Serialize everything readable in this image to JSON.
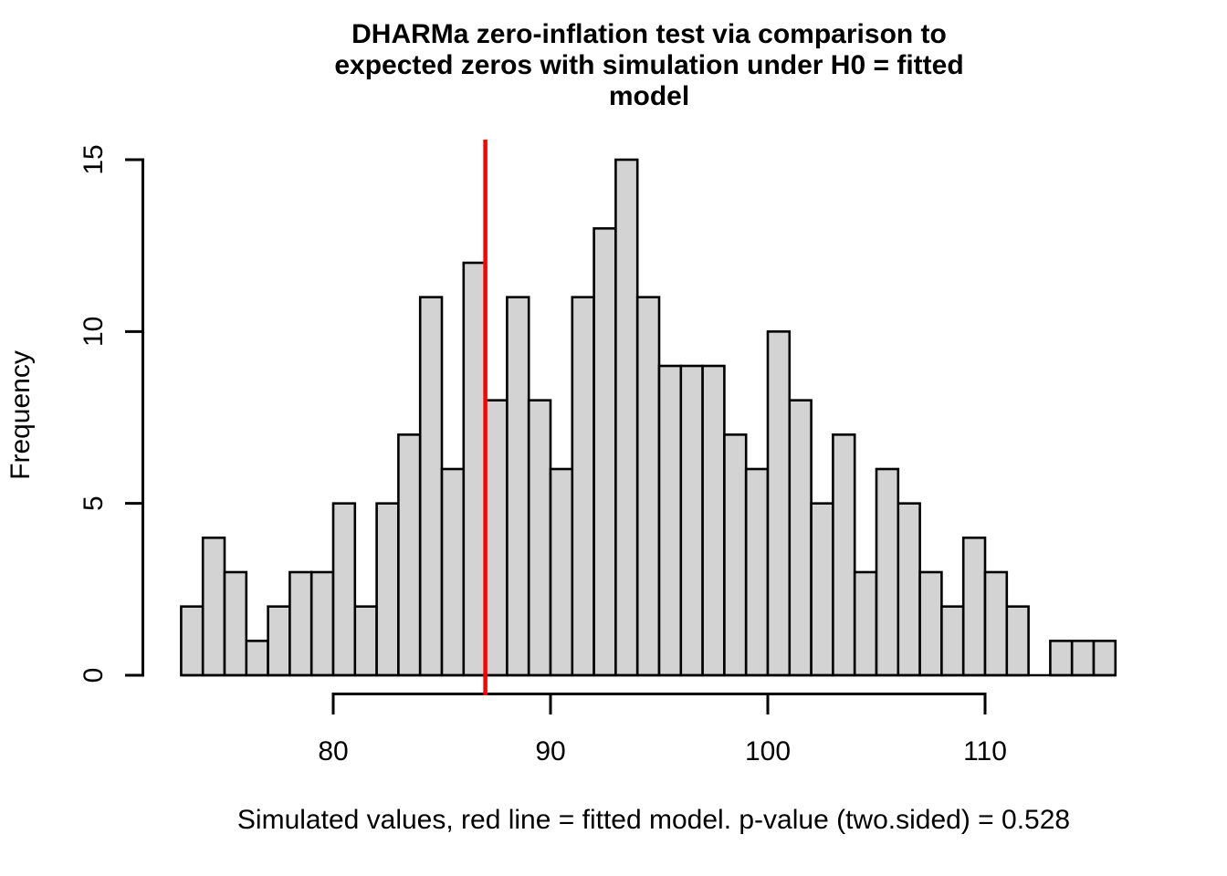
{
  "title_lines": [
    "DHARMa zero-inflation test via comparison to",
    "expected zeros with simulation under H0 = fitted",
    "model"
  ],
  "xlabel": "Simulated values, red line = fitted model. p-value (two.sided) = 0.528",
  "ylabel": "Frequency",
  "p_value": "0.528",
  "colors": {
    "background": "#FFFFFF",
    "bar_fill": "#D3D3D3",
    "bar_border": "#000000",
    "red_line": "#FF0000",
    "axis": "#000000",
    "text": "#000000"
  },
  "chart_data": {
    "type": "bar",
    "subtype": "histogram",
    "title": "DHARMa zero-inflation test via comparison to expected zeros with simulation under H0 = fitted model",
    "xlabel": "Simulated values, red line = fitted model. p-value (two.sided) = 0.528",
    "ylabel": "Frequency",
    "bin_start": 73,
    "bin_width": 1,
    "counts": [
      2,
      4,
      3,
      1,
      2,
      3,
      3,
      5,
      2,
      5,
      7,
      11,
      6,
      12,
      8,
      11,
      8,
      6,
      11,
      13,
      15,
      11,
      9,
      9,
      9,
      7,
      6,
      10,
      8,
      5,
      7,
      3,
      6,
      5,
      3,
      2,
      4,
      3,
      2,
      0,
      1,
      1,
      1
    ],
    "red_line_x": 87,
    "xticks": [
      80,
      90,
      100,
      110
    ],
    "yticks": [
      0,
      5,
      10,
      15
    ],
    "xlim_axis": [
      80,
      110
    ],
    "ylim": [
      0,
      15
    ],
    "grid": false,
    "legend": null
  }
}
